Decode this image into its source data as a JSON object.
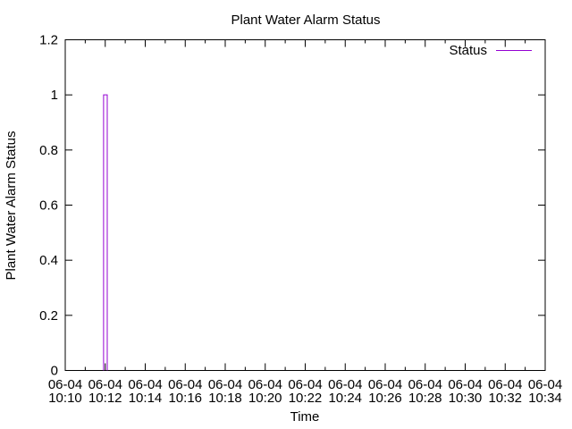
{
  "chart_data": {
    "type": "line",
    "title": "Plant Water Alarm Status",
    "xlabel": "Time",
    "ylabel": "Plant Water Alarm Status",
    "xlim": [
      "10:10",
      "10:34"
    ],
    "ylim": [
      0,
      1.2
    ],
    "y_ticks": [
      "0",
      "0.2",
      "0.4",
      "0.6",
      "0.8",
      "1",
      "1.2"
    ],
    "x_ticks": [
      {
        "date": "06-04",
        "time": "10:10"
      },
      {
        "date": "06-04",
        "time": "10:12"
      },
      {
        "date": "06-04",
        "time": "10:14"
      },
      {
        "date": "06-04",
        "time": "10:16"
      },
      {
        "date": "06-04",
        "time": "10:18"
      },
      {
        "date": "06-04",
        "time": "10:20"
      },
      {
        "date": "06-04",
        "time": "10:22"
      },
      {
        "date": "06-04",
        "time": "10:24"
      },
      {
        "date": "06-04",
        "time": "10:26"
      },
      {
        "date": "06-04",
        "time": "10:28"
      },
      {
        "date": "06-04",
        "time": "10:30"
      },
      {
        "date": "06-04",
        "time": "10:32"
      },
      {
        "date": "06-04",
        "time": "10:34"
      }
    ],
    "grid": false,
    "legend_position": "top-right",
    "series": [
      {
        "name": "Status",
        "color": "#9400d3",
        "points": [
          {
            "t": "10:11:55",
            "y": 0
          },
          {
            "t": "10:11:55",
            "y": 1
          },
          {
            "t": "10:12:06",
            "y": 1
          },
          {
            "t": "10:12:06",
            "y": 0
          }
        ]
      }
    ]
  }
}
